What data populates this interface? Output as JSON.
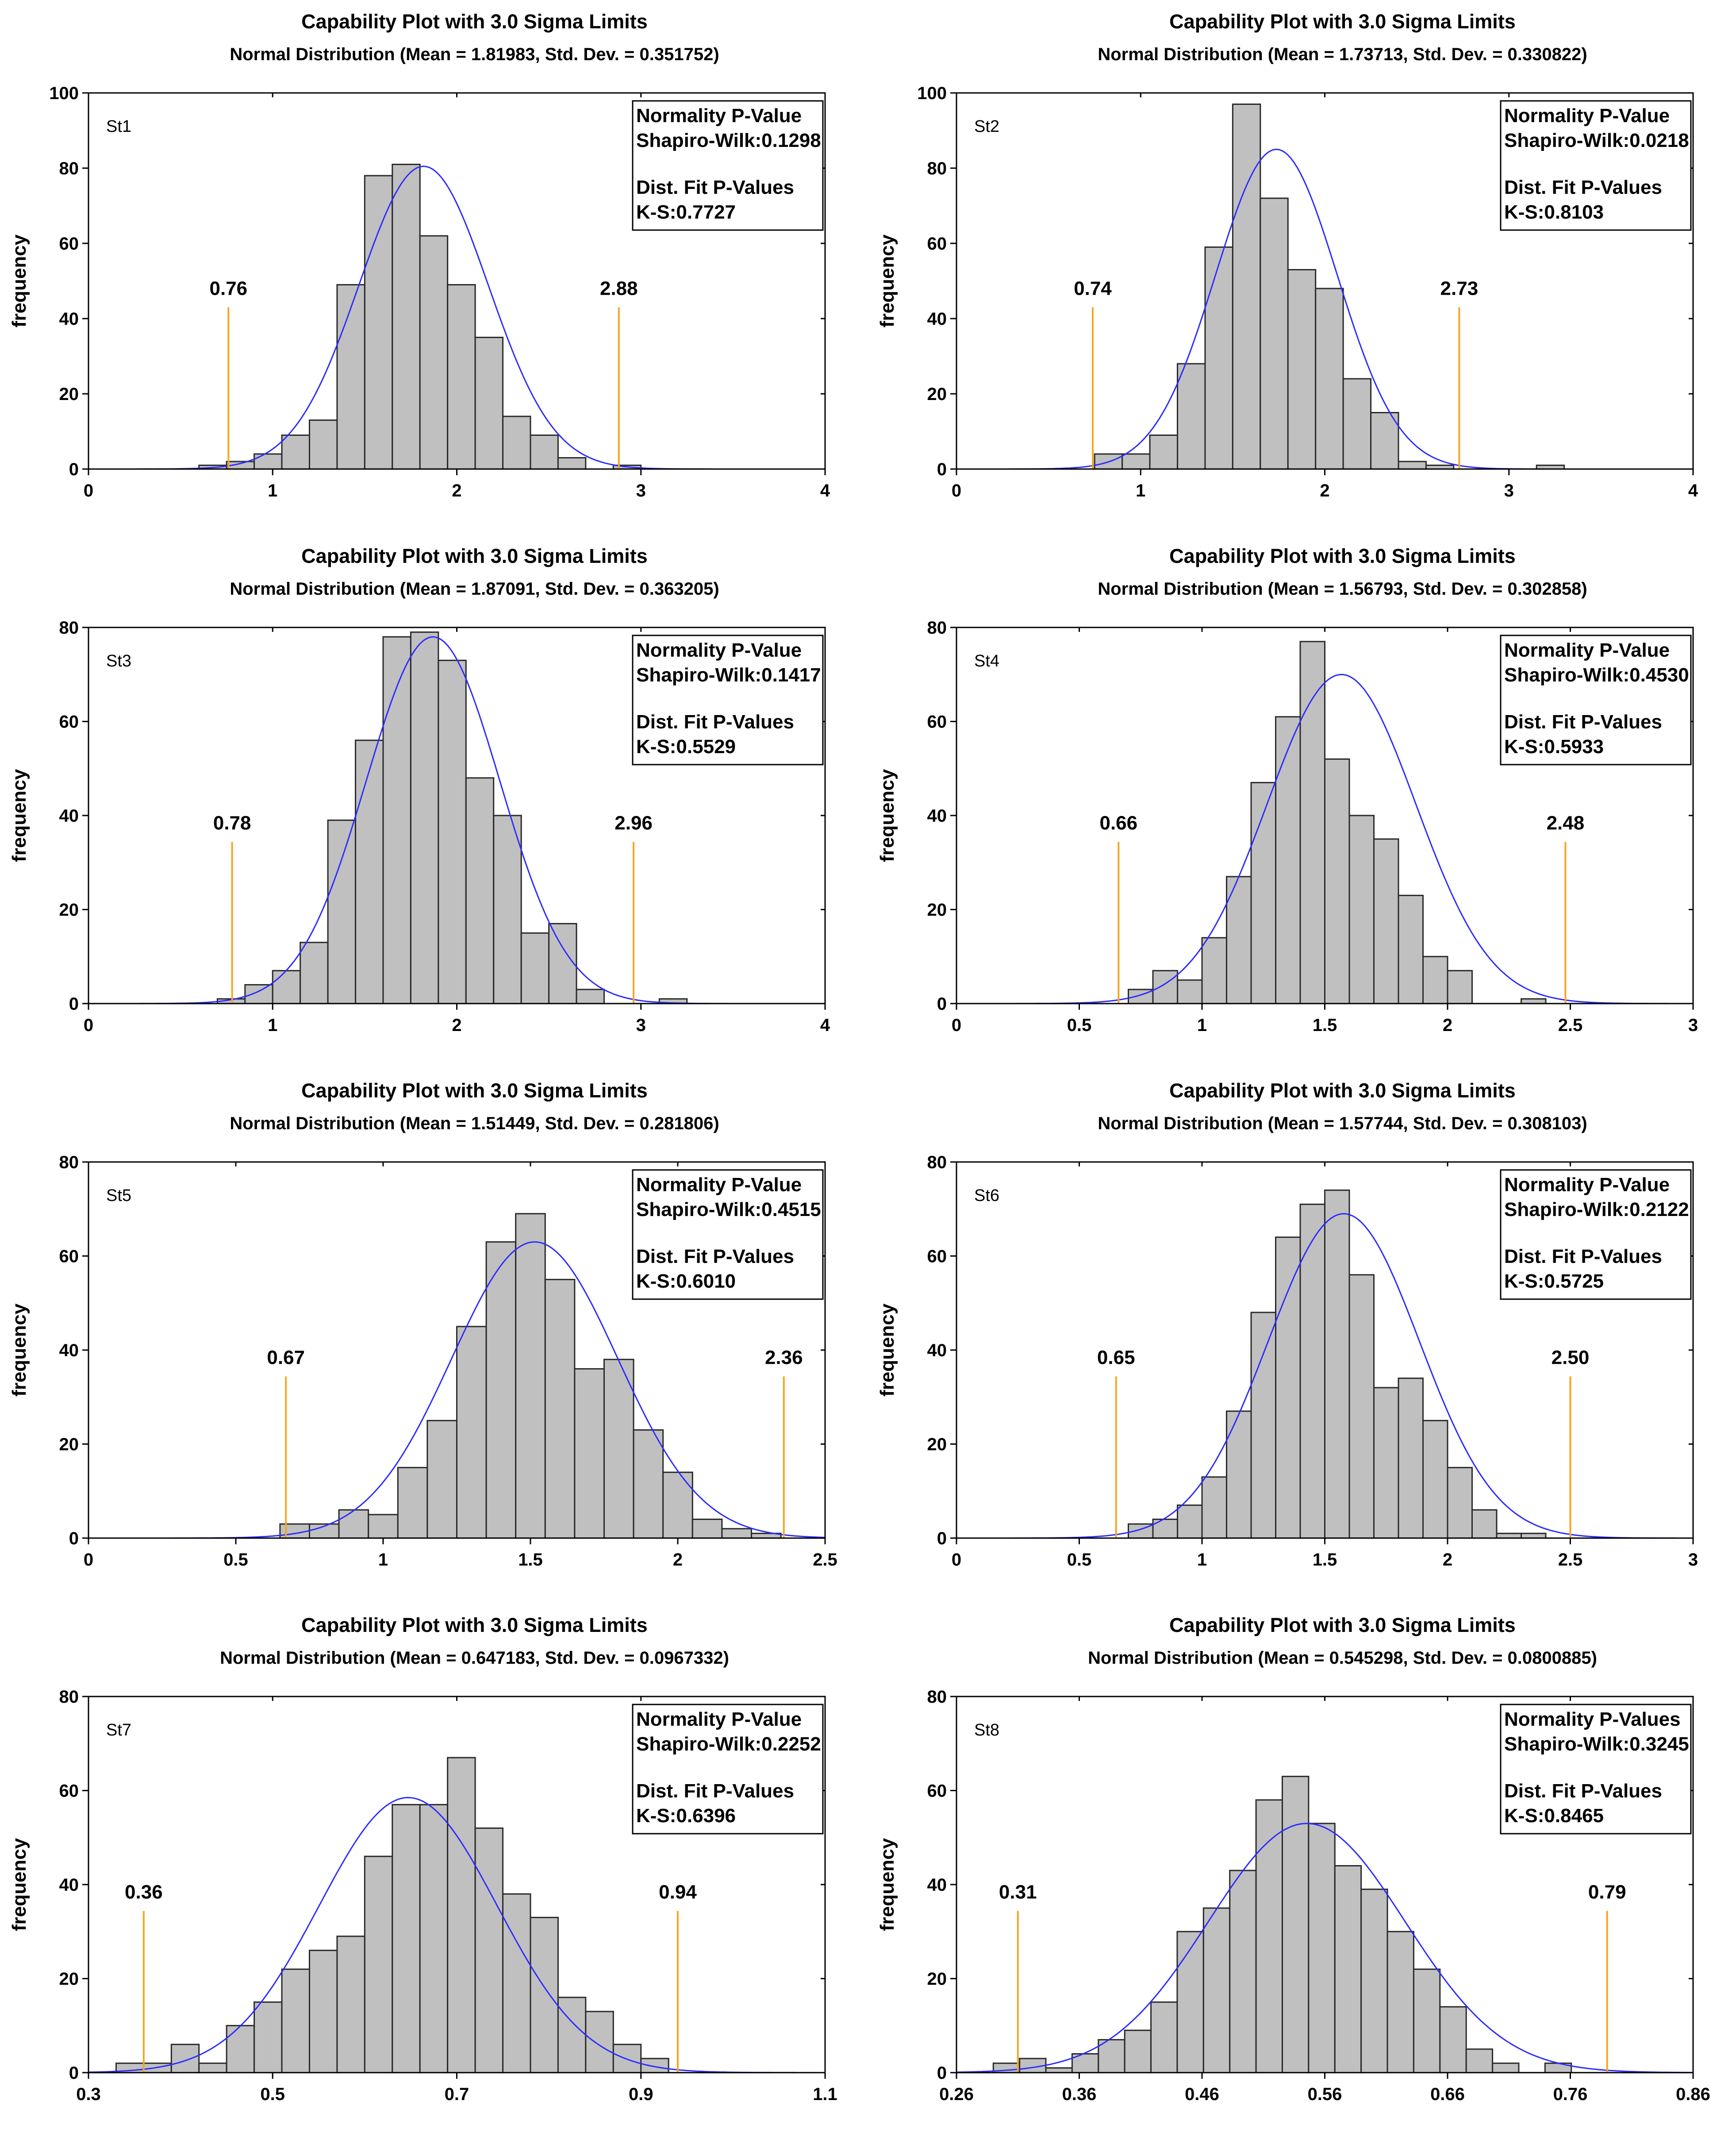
{
  "chart_data": [
    {
      "type": "bar",
      "id": "St1",
      "title": "Capability Plot with 3.0 Sigma Limits",
      "subtitle": "Normal Distribution  (Mean = 1.81983, Std. Dev. = 0.351752)",
      "series_label": "St1",
      "ylabel": "frequency",
      "xlim": [
        0,
        4
      ],
      "xticks": [
        0,
        1,
        2,
        3,
        4
      ],
      "xtick_labels": [
        "0",
        "1",
        "2",
        "3",
        "4"
      ],
      "ylim": [
        0,
        100
      ],
      "yticks": [
        0,
        20,
        40,
        60,
        80,
        100
      ],
      "ytick_labels": [
        "0",
        "20",
        "40",
        "60",
        "80",
        "100"
      ],
      "bin_start": 0.6,
      "bin_width": 0.15,
      "counts": [
        1,
        2,
        4,
        9,
        13,
        49,
        78,
        81,
        62,
        49,
        35,
        14,
        9,
        3,
        0,
        1,
        0
      ],
      "mean": 1.81983,
      "std": 0.351752,
      "curve_peak": 80.5,
      "lower_limit": 0.76,
      "upper_limit": 2.88,
      "lower_limit_label": "0.76",
      "upper_limit_label": "2.88",
      "stats": {
        "header": "Normality P-Value",
        "sw": "Shapiro-Wilk:0.1298",
        "fit": "Dist. Fit P-Values",
        "ks": "K-S:0.7727"
      }
    },
    {
      "type": "bar",
      "id": "St2",
      "title": "Capability Plot with 3.0 Sigma Limits",
      "subtitle": "Normal Distribution  (Mean = 1.73713, Std. Dev. = 0.330822)",
      "series_label": "St2",
      "ylabel": "frequency",
      "xlim": [
        0,
        4
      ],
      "xticks": [
        0,
        1,
        2,
        3,
        4
      ],
      "xtick_labels": [
        "0",
        "1",
        "2",
        "3",
        "4"
      ],
      "ylim": [
        0,
        100
      ],
      "yticks": [
        0,
        20,
        40,
        60,
        80,
        100
      ],
      "ytick_labels": [
        "0",
        "20",
        "40",
        "60",
        "80",
        "100"
      ],
      "bin_start": 0.75,
      "bin_width": 0.15,
      "counts": [
        4,
        4,
        9,
        28,
        59,
        97,
        72,
        53,
        48,
        24,
        15,
        2,
        1,
        0,
        0,
        0,
        1
      ],
      "mean": 1.73713,
      "std": 0.330822,
      "curve_peak": 85,
      "lower_limit": 0.74,
      "upper_limit": 2.73,
      "lower_limit_label": "0.74",
      "upper_limit_label": "2.73",
      "stats": {
        "header": "Normality P-Value",
        "sw": "Shapiro-Wilk:0.0218",
        "fit": "Dist. Fit P-Values",
        "ks": "K-S:0.8103"
      }
    },
    {
      "type": "bar",
      "id": "St3",
      "title": "Capability Plot with 3.0 Sigma Limits",
      "subtitle": "Normal Distribution  (Mean = 1.87091, Std. Dev. = 0.363205)",
      "series_label": "St3",
      "ylabel": "frequency",
      "xlim": [
        0,
        4
      ],
      "xticks": [
        0,
        1,
        2,
        3,
        4
      ],
      "xtick_labels": [
        "0",
        "1",
        "2",
        "3",
        "4"
      ],
      "ylim": [
        0,
        80
      ],
      "yticks": [
        0,
        20,
        40,
        60,
        80
      ],
      "ytick_labels": [
        "0",
        "20",
        "40",
        "60",
        "80"
      ],
      "bin_start": 0.7,
      "bin_width": 0.15,
      "counts": [
        1,
        4,
        7,
        13,
        39,
        56,
        78,
        79,
        73,
        48,
        40,
        15,
        17,
        3,
        0,
        0,
        1
      ],
      "mean": 1.87091,
      "std": 0.363205,
      "curve_peak": 78,
      "lower_limit": 0.78,
      "upper_limit": 2.96,
      "lower_limit_label": "0.78",
      "upper_limit_label": "2.96",
      "stats": {
        "header": "Normality P-Value",
        "sw": "Shapiro-Wilk:0.1417",
        "fit": "Dist. Fit P-Values",
        "ks": "K-S:0.5529"
      }
    },
    {
      "type": "bar",
      "id": "St4",
      "title": "Capability Plot with 3.0 Sigma Limits",
      "subtitle": "Normal Distribution  (Mean = 1.56793, Std. Dev. = 0.302858)",
      "series_label": "St4",
      "ylabel": "frequency",
      "xlim": [
        0,
        3
      ],
      "xticks": [
        0,
        0.5,
        1,
        1.5,
        2,
        2.5,
        3
      ],
      "xtick_labels": [
        "0",
        "0.5",
        "1",
        "1.5",
        "2",
        "2.5",
        "3"
      ],
      "ylim": [
        0,
        80
      ],
      "yticks": [
        0,
        20,
        40,
        60,
        80
      ],
      "ytick_labels": [
        "0",
        "20",
        "40",
        "60",
        "80"
      ],
      "bin_start": 0.7,
      "bin_width": 0.1,
      "counts": [
        3,
        7,
        5,
        14,
        27,
        47,
        61,
        77,
        52,
        40,
        35,
        23,
        10,
        7,
        0,
        0,
        1
      ],
      "mean": 1.56793,
      "std": 0.302858,
      "curve_peak": 70,
      "lower_limit": 0.66,
      "upper_limit": 2.48,
      "lower_limit_label": "0.66",
      "upper_limit_label": "2.48",
      "stats": {
        "header": "Normality P-Value",
        "sw": "Shapiro-Wilk:0.4530",
        "fit": "Dist. Fit P-Values",
        "ks": "K-S:0.5933"
      }
    },
    {
      "type": "bar",
      "id": "St5",
      "title": "Capability Plot with 3.0 Sigma Limits",
      "subtitle": "Normal Distribution  (Mean = 1.51449, Std. Dev. = 0.281806)",
      "series_label": "St5",
      "ylabel": "frequency",
      "xlim": [
        0,
        2.5
      ],
      "xticks": [
        0,
        0.5,
        1,
        1.5,
        2,
        2.5
      ],
      "xtick_labels": [
        "0",
        "0.5",
        "1",
        "1.5",
        "2",
        "2.5"
      ],
      "ylim": [
        0,
        80
      ],
      "yticks": [
        0,
        20,
        40,
        60,
        80
      ],
      "ytick_labels": [
        "0",
        "20",
        "40",
        "60",
        "80"
      ],
      "bin_start": 0.65,
      "bin_width": 0.1,
      "counts": [
        3,
        3,
        6,
        5,
        15,
        25,
        45,
        63,
        69,
        55,
        36,
        38,
        23,
        14,
        4,
        2,
        1
      ],
      "mean": 1.51449,
      "std": 0.281806,
      "curve_peak": 63,
      "lower_limit": 0.67,
      "upper_limit": 2.36,
      "lower_limit_label": "0.67",
      "upper_limit_label": "2.36",
      "stats": {
        "header": "Normality P-Value",
        "sw": "Shapiro-Wilk:0.4515",
        "fit": "Dist. Fit P-Values",
        "ks": "K-S:0.6010"
      }
    },
    {
      "type": "bar",
      "id": "St6",
      "title": "Capability Plot with 3.0 Sigma Limits",
      "subtitle": "Normal Distribution  (Mean = 1.57744, Std. Dev. = 0.308103)",
      "series_label": "St6",
      "ylabel": "frequency",
      "xlim": [
        0,
        3
      ],
      "xticks": [
        0,
        0.5,
        1,
        1.5,
        2,
        2.5,
        3
      ],
      "xtick_labels": [
        "0",
        "0.5",
        "1",
        "1.5",
        "2",
        "2.5",
        "3"
      ],
      "ylim": [
        0,
        80
      ],
      "yticks": [
        0,
        20,
        40,
        60,
        80
      ],
      "ytick_labels": [
        "0",
        "20",
        "40",
        "60",
        "80"
      ],
      "bin_start": 0.7,
      "bin_width": 0.1,
      "counts": [
        3,
        4,
        7,
        13,
        27,
        48,
        64,
        71,
        74,
        56,
        32,
        34,
        25,
        15,
        6,
        1,
        1
      ],
      "mean": 1.57744,
      "std": 0.308103,
      "curve_peak": 69,
      "lower_limit": 0.65,
      "upper_limit": 2.5,
      "lower_limit_label": "0.65",
      "upper_limit_label": "2.50",
      "stats": {
        "header": "Normality P-Value",
        "sw": "Shapiro-Wilk:0.2122",
        "fit": "Dist. Fit P-Values",
        "ks": "K-S:0.5725"
      }
    },
    {
      "type": "bar",
      "id": "St7",
      "title": "Capability Plot with 3.0 Sigma Limits",
      "subtitle": "Normal Distribution  (Mean = 0.647183, Std. Dev. = 0.0967332)",
      "series_label": "St7",
      "ylabel": "frequency",
      "xlim": [
        0.3,
        1.1
      ],
      "xticks": [
        0.3,
        0.5,
        0.7,
        0.9,
        1.1
      ],
      "xtick_labels": [
        "0.3",
        "0.5",
        "0.7",
        "0.9",
        "1.1"
      ],
      "ylim": [
        0,
        80
      ],
      "yticks": [
        0,
        20,
        40,
        60,
        80
      ],
      "ytick_labels": [
        "0",
        "20",
        "40",
        "60",
        "80"
      ],
      "bin_start": 0.33,
      "bin_width": 0.03,
      "counts": [
        2,
        2,
        6,
        2,
        10,
        15,
        22,
        26,
        29,
        46,
        57,
        57,
        67,
        52,
        38,
        33,
        16,
        13,
        6,
        3
      ],
      "mean": 0.647183,
      "std": 0.0967332,
      "curve_peak": 58.5,
      "lower_limit": 0.36,
      "upper_limit": 0.94,
      "lower_limit_label": "0.36",
      "upper_limit_label": "0.94",
      "stats": {
        "header": "Normality P-Value",
        "sw": "Shapiro-Wilk:0.2252",
        "fit": "Dist. Fit P-Values",
        "ks": "K-S:0.6396"
      }
    },
    {
      "type": "bar",
      "id": "St8",
      "title": "Capability Plot with 3.0 Sigma Limits",
      "subtitle": "Normal Distribution  (Mean = 0.545298, Std. Dev. = 0.0800885)",
      "series_label": "St8",
      "ylabel": "frequency",
      "xlim": [
        0.26,
        0.86
      ],
      "xticks": [
        0.26,
        0.36,
        0.46,
        0.56,
        0.66,
        0.76,
        0.86
      ],
      "xtick_labels": [
        "0.26",
        "0.36",
        "0.46",
        "0.56",
        "0.66",
        "0.76",
        "0.86"
      ],
      "ylim": [
        0,
        80
      ],
      "yticks": [
        0,
        20,
        40,
        60,
        80
      ],
      "ytick_labels": [
        "0",
        "20",
        "40",
        "60",
        "80"
      ],
      "bin_start": 0.29,
      "bin_width": 0.0214,
      "counts": [
        2,
        3,
        1,
        4,
        7,
        9,
        15,
        30,
        35,
        43,
        58,
        63,
        53,
        44,
        39,
        30,
        22,
        14,
        5,
        2,
        0,
        2
      ],
      "mean": 0.545298,
      "std": 0.0800885,
      "curve_peak": 53,
      "lower_limit": 0.31,
      "upper_limit": 0.79,
      "lower_limit_label": "0.31",
      "upper_limit_label": "0.79",
      "stats": {
        "header": "Normality P-Values",
        "sw": "Shapiro-Wilk:0.3245",
        "fit": "Dist. Fit P-Values",
        "ks": "K-S:0.8465"
      }
    }
  ]
}
